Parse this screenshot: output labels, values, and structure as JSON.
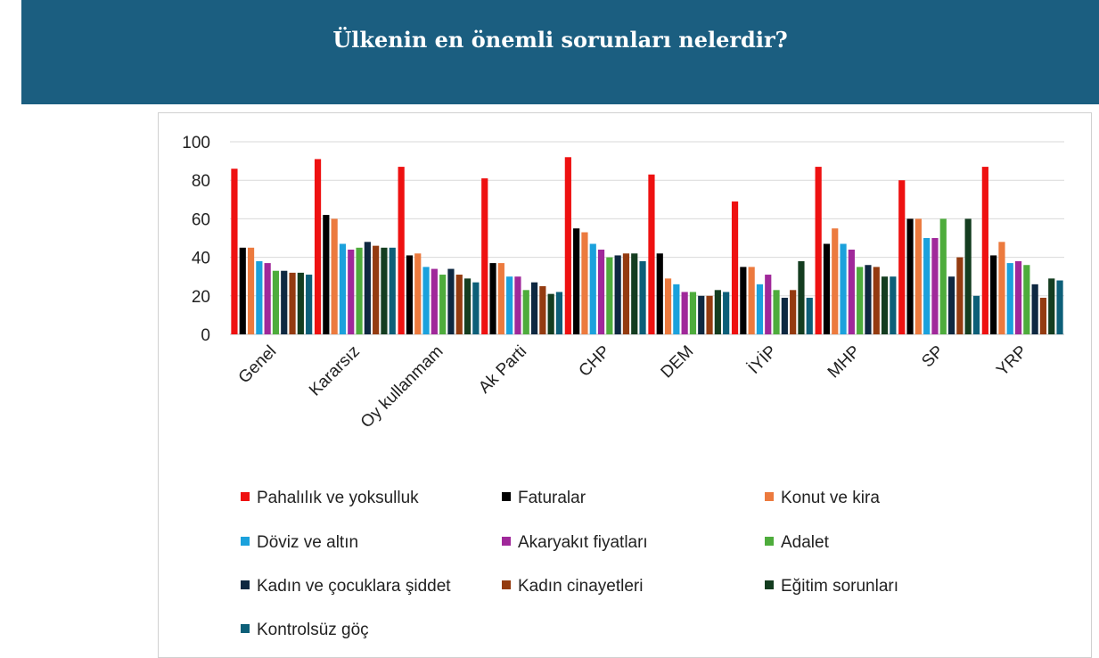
{
  "header": {
    "title": "Ülkenin en önemli sorunları nelerdir?"
  },
  "chart_data": {
    "type": "bar",
    "title": "",
    "xlabel": "",
    "ylabel": "",
    "ylim": [
      0,
      100
    ],
    "yticks": [
      0,
      20,
      40,
      60,
      80,
      100
    ],
    "grid": true,
    "legend_position": "bottom",
    "categories": [
      "Genel",
      "Kararsız",
      "Oy kullanmam",
      "Ak Parti",
      "CHP",
      "DEM",
      "İYİP",
      "MHP",
      "SP",
      "YRP"
    ],
    "series": [
      {
        "name": "Pahalılık ve yoksulluk",
        "color": "#ee1111",
        "values": [
          86,
          91,
          87,
          81,
          92,
          83,
          69,
          87,
          80,
          87
        ]
      },
      {
        "name": "Faturalar",
        "color": "#000000",
        "values": [
          45,
          62,
          41,
          37,
          55,
          42,
          35,
          47,
          60,
          41
        ]
      },
      {
        "name": "Konut ve kira",
        "color": "#ec7a3e",
        "values": [
          45,
          60,
          42,
          37,
          53,
          29,
          35,
          55,
          60,
          48
        ]
      },
      {
        "name": "Döviz ve altın",
        "color": "#1ba1dc",
        "values": [
          38,
          47,
          35,
          30,
          47,
          26,
          26,
          47,
          50,
          37
        ]
      },
      {
        "name": "Akaryakıt fiyatları",
        "color": "#a0289a",
        "values": [
          37,
          44,
          34,
          30,
          44,
          22,
          31,
          44,
          50,
          38
        ]
      },
      {
        "name": "Adalet",
        "color": "#4eac3c",
        "values": [
          33,
          45,
          31,
          23,
          40,
          22,
          23,
          35,
          60,
          36
        ]
      },
      {
        "name": "Kadın ve çocuklara şiddet",
        "color": "#0e2841",
        "values": [
          33,
          48,
          34,
          27,
          41,
          20,
          19,
          36,
          30,
          26
        ]
      },
      {
        "name": "Kadın cinayetleri",
        "color": "#943b10",
        "values": [
          32,
          46,
          31,
          25,
          42,
          20,
          23,
          35,
          40,
          19
        ]
      },
      {
        "name": "Eğitim sorunları",
        "color": "#143d20",
        "values": [
          32,
          45,
          29,
          21,
          42,
          23,
          38,
          30,
          60,
          29
        ]
      },
      {
        "name": "Kontrolsüz göç",
        "color": "#0d5f78",
        "values": [
          31,
          45,
          27,
          22,
          38,
          22,
          19,
          30,
          20,
          28
        ]
      }
    ]
  }
}
